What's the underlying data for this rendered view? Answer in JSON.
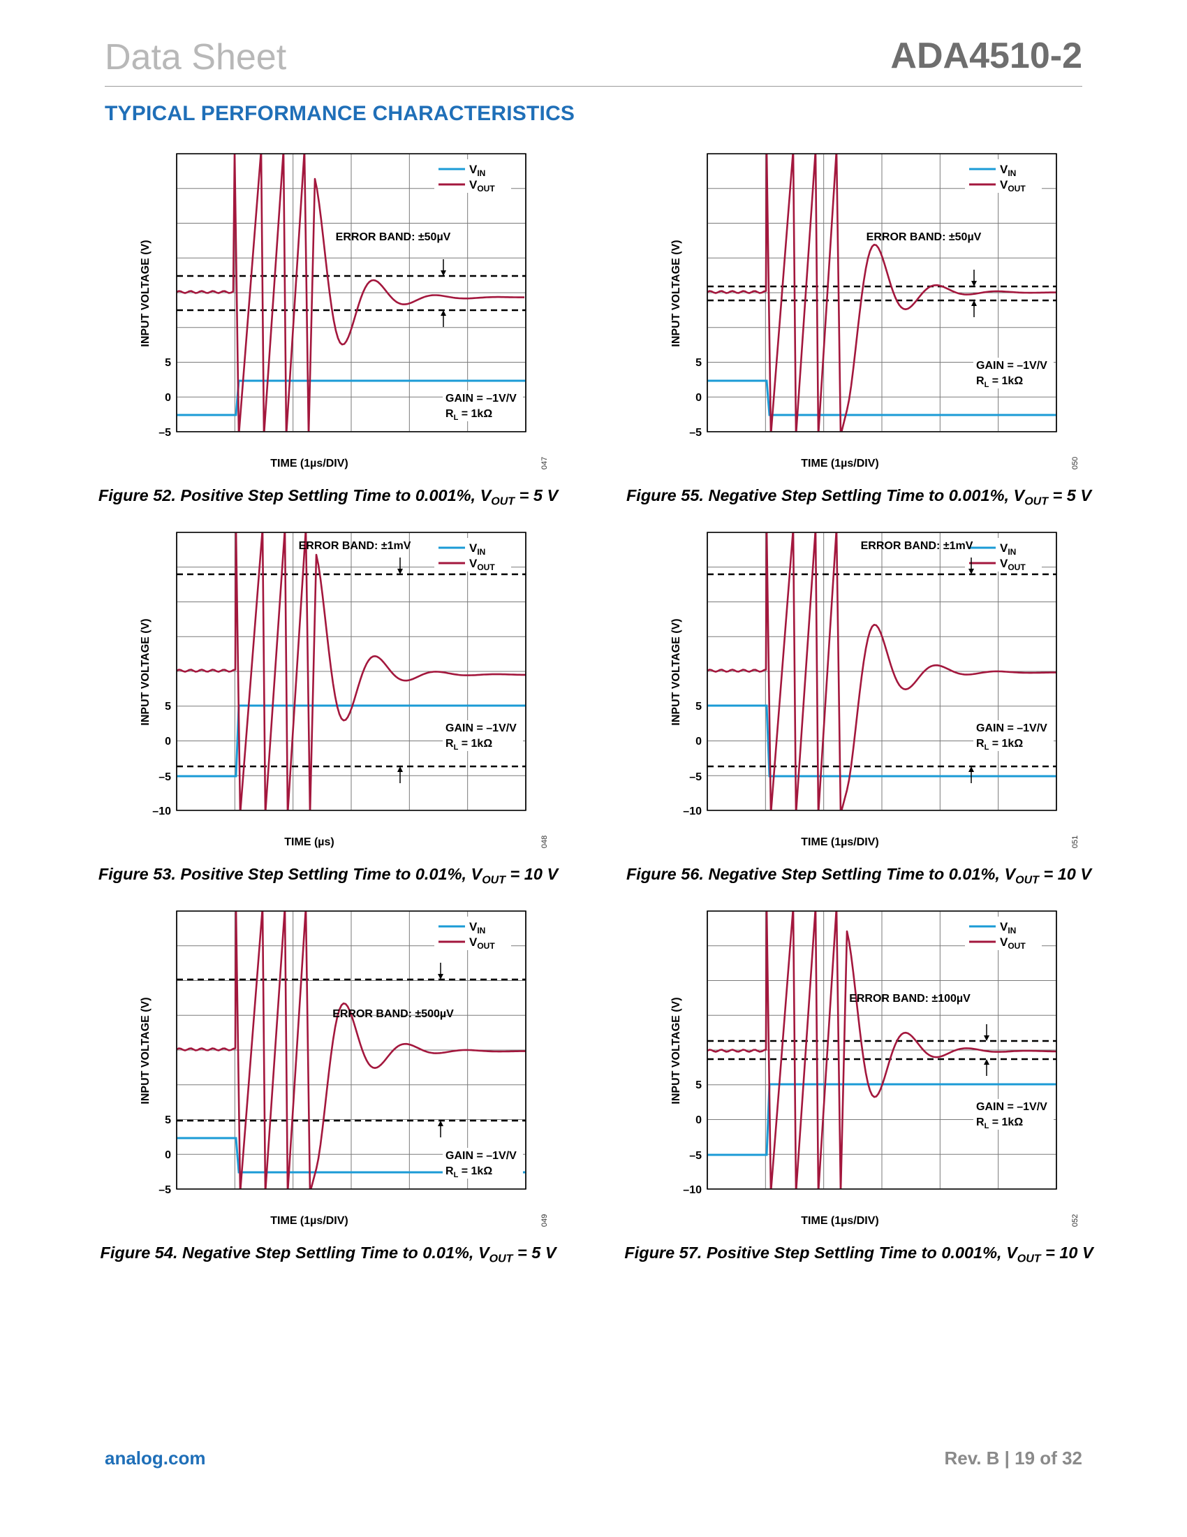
{
  "header": {
    "left": "Data Sheet",
    "right": "ADA4510-2"
  },
  "section_title": "TYPICAL PERFORMANCE CHARACTERISTICS",
  "footer": {
    "left": "analog.com",
    "right": "Rev. B | 19 of 32"
  },
  "colors": {
    "vin": "#1b9bd6",
    "vout": "#a3173d",
    "accent": "#1f6fb8"
  },
  "legend": {
    "vin_main": "V",
    "vin_sub": "IN",
    "vout_main": "V",
    "vout_sub": "OUT"
  },
  "figures": [
    {
      "id": "fig52",
      "caption_main": "Figure 52. Positive Step Settling Time to 0.001%, V",
      "caption_sub": "OUT",
      "caption_tail": " = 5 V",
      "code": "047",
      "ylabel": "INPUT VOLTAGE (V)",
      "xlabel": "TIME (1µs/DIV)",
      "error_band": "ERROR BAND: ±50µV",
      "gain": "GAIN = –1V/V",
      "rl_main": "R",
      "rl_sub": "L",
      "rl_tail": " = 1kΩ",
      "yticks": [
        "5",
        "0",
        "–5"
      ],
      "chart_data": {
        "type": "line",
        "x_divisions": 6,
        "y_divisions": 8,
        "step_direction": "positive",
        "vin_step": [
          -2.5,
          2.5
        ],
        "settling_percent": 0.001,
        "vout_volts": 5
      }
    },
    {
      "id": "fig55",
      "caption_main": "Figure 55. Negative Step Settling Time to 0.001%, V",
      "caption_sub": "OUT",
      "caption_tail": " = 5 V",
      "code": "050",
      "ylabel": "INPUT VOLTAGE (V)",
      "xlabel": "TIME (1µs/DIV)",
      "error_band": "ERROR BAND: ±50µV",
      "gain": "GAIN = –1V/V",
      "rl_main": "R",
      "rl_sub": "L",
      "rl_tail": " = 1kΩ",
      "yticks": [
        "5",
        "0",
        "–5"
      ],
      "chart_data": {
        "type": "line",
        "x_divisions": 6,
        "y_divisions": 8,
        "step_direction": "negative",
        "vin_step": [
          2.5,
          -2.5
        ],
        "settling_percent": 0.001,
        "vout_volts": 5
      }
    },
    {
      "id": "fig53",
      "caption_main": "Figure 53. Positive Step Settling Time to 0.01%, V",
      "caption_sub": "OUT",
      "caption_tail": " = 10 V",
      "code": "048",
      "ylabel": "INPUT VOLTAGE (V)",
      "xlabel": "TIME (µs)",
      "error_band": "ERROR BAND: ±1mV",
      "gain": "GAIN = –1V/V",
      "rl_main": "R",
      "rl_sub": "L",
      "rl_tail": " = 1kΩ",
      "yticks": [
        "5",
        "0",
        "–5",
        "–10"
      ],
      "chart_data": {
        "type": "line",
        "x_divisions": 6,
        "y_divisions": 8,
        "step_direction": "positive",
        "vin_step": [
          -5,
          5
        ],
        "settling_percent": 0.01,
        "vout_volts": 10
      }
    },
    {
      "id": "fig56",
      "caption_main": "Figure 56. Negative Step Settling Time to 0.01%, V",
      "caption_sub": "OUT",
      "caption_tail": " = 10 V",
      "code": "051",
      "ylabel": "INPUT VOLTAGE (V)",
      "xlabel": "TIME (1µs/DIV)",
      "error_band": "ERROR BAND: ±1mV",
      "gain": "GAIN = –1V/V",
      "rl_main": "R",
      "rl_sub": "L",
      "rl_tail": " = 1kΩ",
      "yticks": [
        "5",
        "0",
        "–5",
        "–10"
      ],
      "chart_data": {
        "type": "line",
        "x_divisions": 6,
        "y_divisions": 8,
        "step_direction": "negative",
        "vin_step": [
          5,
          -5
        ],
        "settling_percent": 0.01,
        "vout_volts": 10
      }
    },
    {
      "id": "fig54",
      "caption_main": "Figure 54. Negative Step Settling Time to 0.01%, V",
      "caption_sub": "OUT",
      "caption_tail": " = 5 V",
      "code": "049",
      "ylabel": "INPUT VOLTAGE (V)",
      "xlabel": "TIME (1µs/DIV)",
      "error_band": "ERROR BAND: ±500µV",
      "gain": "GAIN = –1V/V",
      "rl_main": "R",
      "rl_sub": "L",
      "rl_tail": " = 1kΩ",
      "yticks": [
        "5",
        "0",
        "–5"
      ],
      "chart_data": {
        "type": "line",
        "x_divisions": 6,
        "y_divisions": 8,
        "step_direction": "negative",
        "vin_step": [
          2.5,
          -2.5
        ],
        "settling_percent": 0.01,
        "vout_volts": 5
      }
    },
    {
      "id": "fig57",
      "caption_main": "Figure 57. Positive Step Settling Time to 0.001%, V",
      "caption_sub": "OUT",
      "caption_tail": " = 10 V",
      "code": "052",
      "ylabel": "INPUT VOLTAGE (V)",
      "xlabel": "TIME (1µs/DIV)",
      "error_band": "ERROR BAND: ±100µV",
      "gain": "GAIN = –1V/V",
      "rl_main": "R",
      "rl_sub": "L",
      "rl_tail": " = 1kΩ",
      "yticks": [
        "5",
        "0",
        "–5",
        "–10"
      ],
      "chart_data": {
        "type": "line",
        "x_divisions": 6,
        "y_divisions": 8,
        "step_direction": "positive",
        "vin_step": [
          -5,
          5
        ],
        "settling_percent": 0.001,
        "vout_volts": 10
      }
    }
  ]
}
